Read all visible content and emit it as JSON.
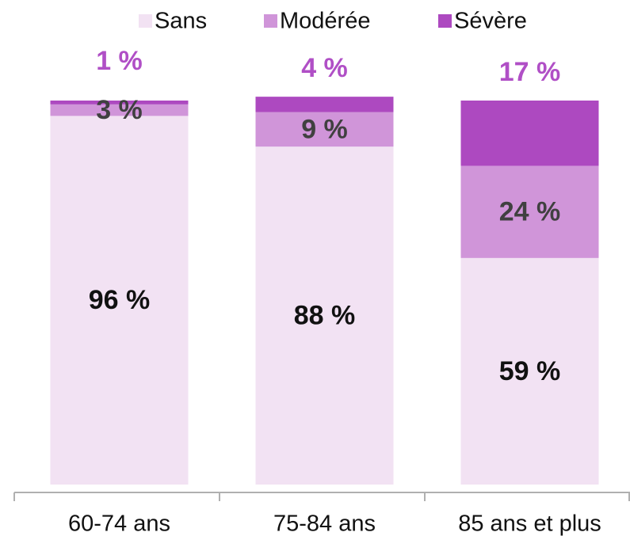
{
  "chart_data": {
    "type": "stacked_bar",
    "categories": [
      "60-74 ans",
      "75-84 ans",
      "85 ans et plus"
    ],
    "series": [
      {
        "name": "Sans",
        "color": "#f2e2f3",
        "label_color": "#111111",
        "values": [
          96,
          88,
          59
        ],
        "value_labels": [
          "96 %",
          "88 %",
          "59 %"
        ]
      },
      {
        "name": "Modérée",
        "color": "#d095d9",
        "label_color": "#404040",
        "values": [
          3,
          9,
          24
        ],
        "value_labels": [
          "3 %",
          "9 %",
          "24 %"
        ]
      },
      {
        "name": "Sévère",
        "color": "#ad49c0",
        "label_color": "#b04fc6",
        "values": [
          1,
          4,
          17
        ],
        "value_labels": [
          "1 %",
          "4 %",
          "17 %"
        ]
      }
    ],
    "ylim": [
      0,
      100
    ],
    "legend": "top"
  }
}
